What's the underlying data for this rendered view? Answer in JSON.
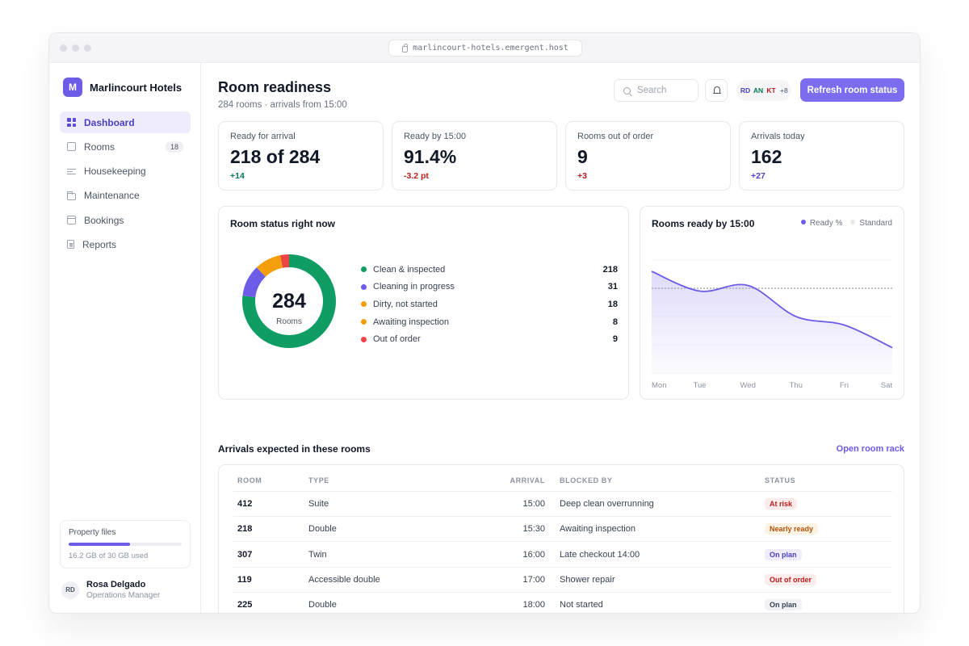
{
  "browser": {
    "url": "marlincourt-hotels.emergent.host"
  },
  "sidebar": {
    "brand_initial": "M",
    "brand_name": "Marlincourt Hotels",
    "items": [
      {
        "label": "Dashboard",
        "icon": "dashboard-grid-icon",
        "active": true
      },
      {
        "label": "Rooms",
        "icon": "cube-icon",
        "badge": "18"
      },
      {
        "label": "Housekeeping",
        "icon": "checklist-icon"
      },
      {
        "label": "Maintenance",
        "icon": "folder-icon"
      },
      {
        "label": "Bookings",
        "icon": "calendar-icon"
      },
      {
        "label": "Reports",
        "icon": "document-icon"
      }
    ],
    "storage": {
      "title": "Property files",
      "used_text": "16.2 GB of 30 GB used",
      "used_fraction": 0.54
    },
    "user": {
      "initials": "RD",
      "name": "Rosa Delgado",
      "role": "Operations Manager"
    }
  },
  "header": {
    "title": "Room readiness",
    "subtitle": "284 rooms · arrivals from 15:00",
    "search_placeholder": "Search",
    "avatars": [
      {
        "initials": "RD",
        "color": "#4c3fc4"
      },
      {
        "initials": "AN",
        "color": "#047857"
      },
      {
        "initials": "KT",
        "color": "#b91c1c"
      }
    ],
    "avatars_more": "+8",
    "refresh_label": "Refresh room status"
  },
  "kpis": [
    {
      "label": "Ready for arrival",
      "value": "218 of 284",
      "delta": "+14",
      "delta_color": "#047857"
    },
    {
      "label": "Ready by 15:00",
      "value": "91.4%",
      "delta": "-3.2 pt",
      "delta_color": "#b91c1c"
    },
    {
      "label": "Rooms out of order",
      "value": "9",
      "delta": "+3",
      "delta_color": "#b91c1c"
    },
    {
      "label": "Arrivals today",
      "value": "162",
      "delta": "+27",
      "delta_color": "#4c3fc4"
    }
  ],
  "status_panel": {
    "title": "Room status right now",
    "center_value": "284",
    "center_label": "Rooms",
    "items": [
      {
        "label": "Clean & inspected",
        "value": 218,
        "color": "#0f9d64"
      },
      {
        "label": "Cleaning in progress",
        "value": 31,
        "color": "#6c5ce7"
      },
      {
        "label": "Dirty, not started",
        "value": 18,
        "color": "#f59e0b"
      },
      {
        "label": "Awaiting inspection",
        "value": 8,
        "color": "#f59e0b"
      },
      {
        "label": "Out of order",
        "value": 9,
        "color": "#ef4444"
      }
    ]
  },
  "chart_data": {
    "type": "area",
    "title": "Rooms ready by 15:00",
    "categories": [
      "Mon",
      "Tue",
      "Wed",
      "Thu",
      "Fri",
      "Sat"
    ],
    "series": [
      {
        "name": "Ready %",
        "values": [
          96,
          89,
          91,
          80,
          77,
          69
        ],
        "color": "#6c5ce7"
      },
      {
        "name": "Standard",
        "values": [
          90,
          90,
          90,
          90,
          90,
          90
        ],
        "color": "#9ca3af"
      }
    ],
    "ylim": [
      60,
      100
    ],
    "grid": true
  },
  "arrivals": {
    "title": "Arrivals expected in these rooms",
    "link": "Open room rack",
    "columns": {
      "room": "ROOM",
      "type": "TYPE",
      "arrival": "ARRIVAL",
      "blocked": "BLOCKED BY",
      "status": "STATUS"
    },
    "rows": [
      {
        "room": "412",
        "type": "Suite",
        "arrival": "15:00",
        "blocked": "Deep clean overrunning",
        "status": "At risk",
        "status_fg": "#b91c1c",
        "status_bg": "#fdecec"
      },
      {
        "room": "218",
        "type": "Double",
        "arrival": "15:30",
        "blocked": "Awaiting inspection",
        "status": "Nearly ready",
        "status_fg": "#b45309",
        "status_bg": "#fdf3e4"
      },
      {
        "room": "307",
        "type": "Twin",
        "arrival": "16:00",
        "blocked": "Late checkout 14:00",
        "status": "On plan",
        "status_fg": "#4c3fc4",
        "status_bg": "#efedfd"
      },
      {
        "room": "119",
        "type": "Accessible double",
        "arrival": "17:00",
        "blocked": "Shower repair",
        "status": "Out of order",
        "status_fg": "#b91c1c",
        "status_bg": "#fdecec"
      },
      {
        "room": "225",
        "type": "Double",
        "arrival": "18:00",
        "blocked": "Not started",
        "status": "On plan",
        "status_fg": "#374151",
        "status_bg": "#f1f2f6"
      }
    ]
  }
}
